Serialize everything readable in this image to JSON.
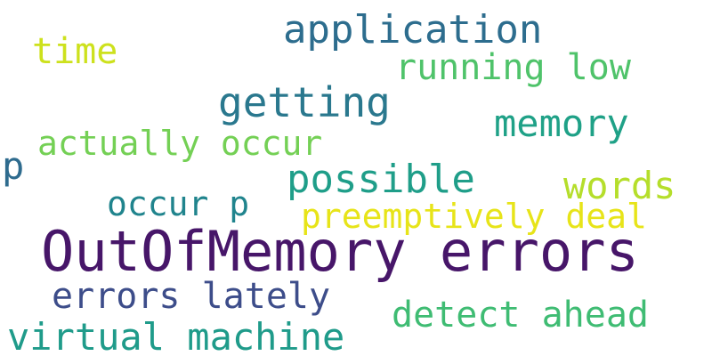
{
  "words": [
    {
      "text": "OutOfMemory errors",
      "color": "#471669"
    },
    {
      "text": "application",
      "color": "#2d6d8e"
    },
    {
      "text": "time",
      "color": "#cde11d"
    },
    {
      "text": "running low",
      "color": "#4fc36a"
    },
    {
      "text": "getting",
      "color": "#2a788e"
    },
    {
      "text": "memory",
      "color": "#1fa187"
    },
    {
      "text": "actually occur",
      "color": "#74d055"
    },
    {
      "text": "p",
      "color": "#2e6b8e"
    },
    {
      "text": "possible",
      "color": "#1f9e89"
    },
    {
      "text": "words",
      "color": "#b5de2b"
    },
    {
      "text": "occur p",
      "color": "#20848d"
    },
    {
      "text": "preemptively deal",
      "color": "#e7e419"
    },
    {
      "text": "errors lately",
      "color": "#3d4d8a"
    },
    {
      "text": "detect ahead",
      "color": "#3fbc73"
    },
    {
      "text": "virtual machine",
      "color": "#1f9b8a"
    }
  ]
}
